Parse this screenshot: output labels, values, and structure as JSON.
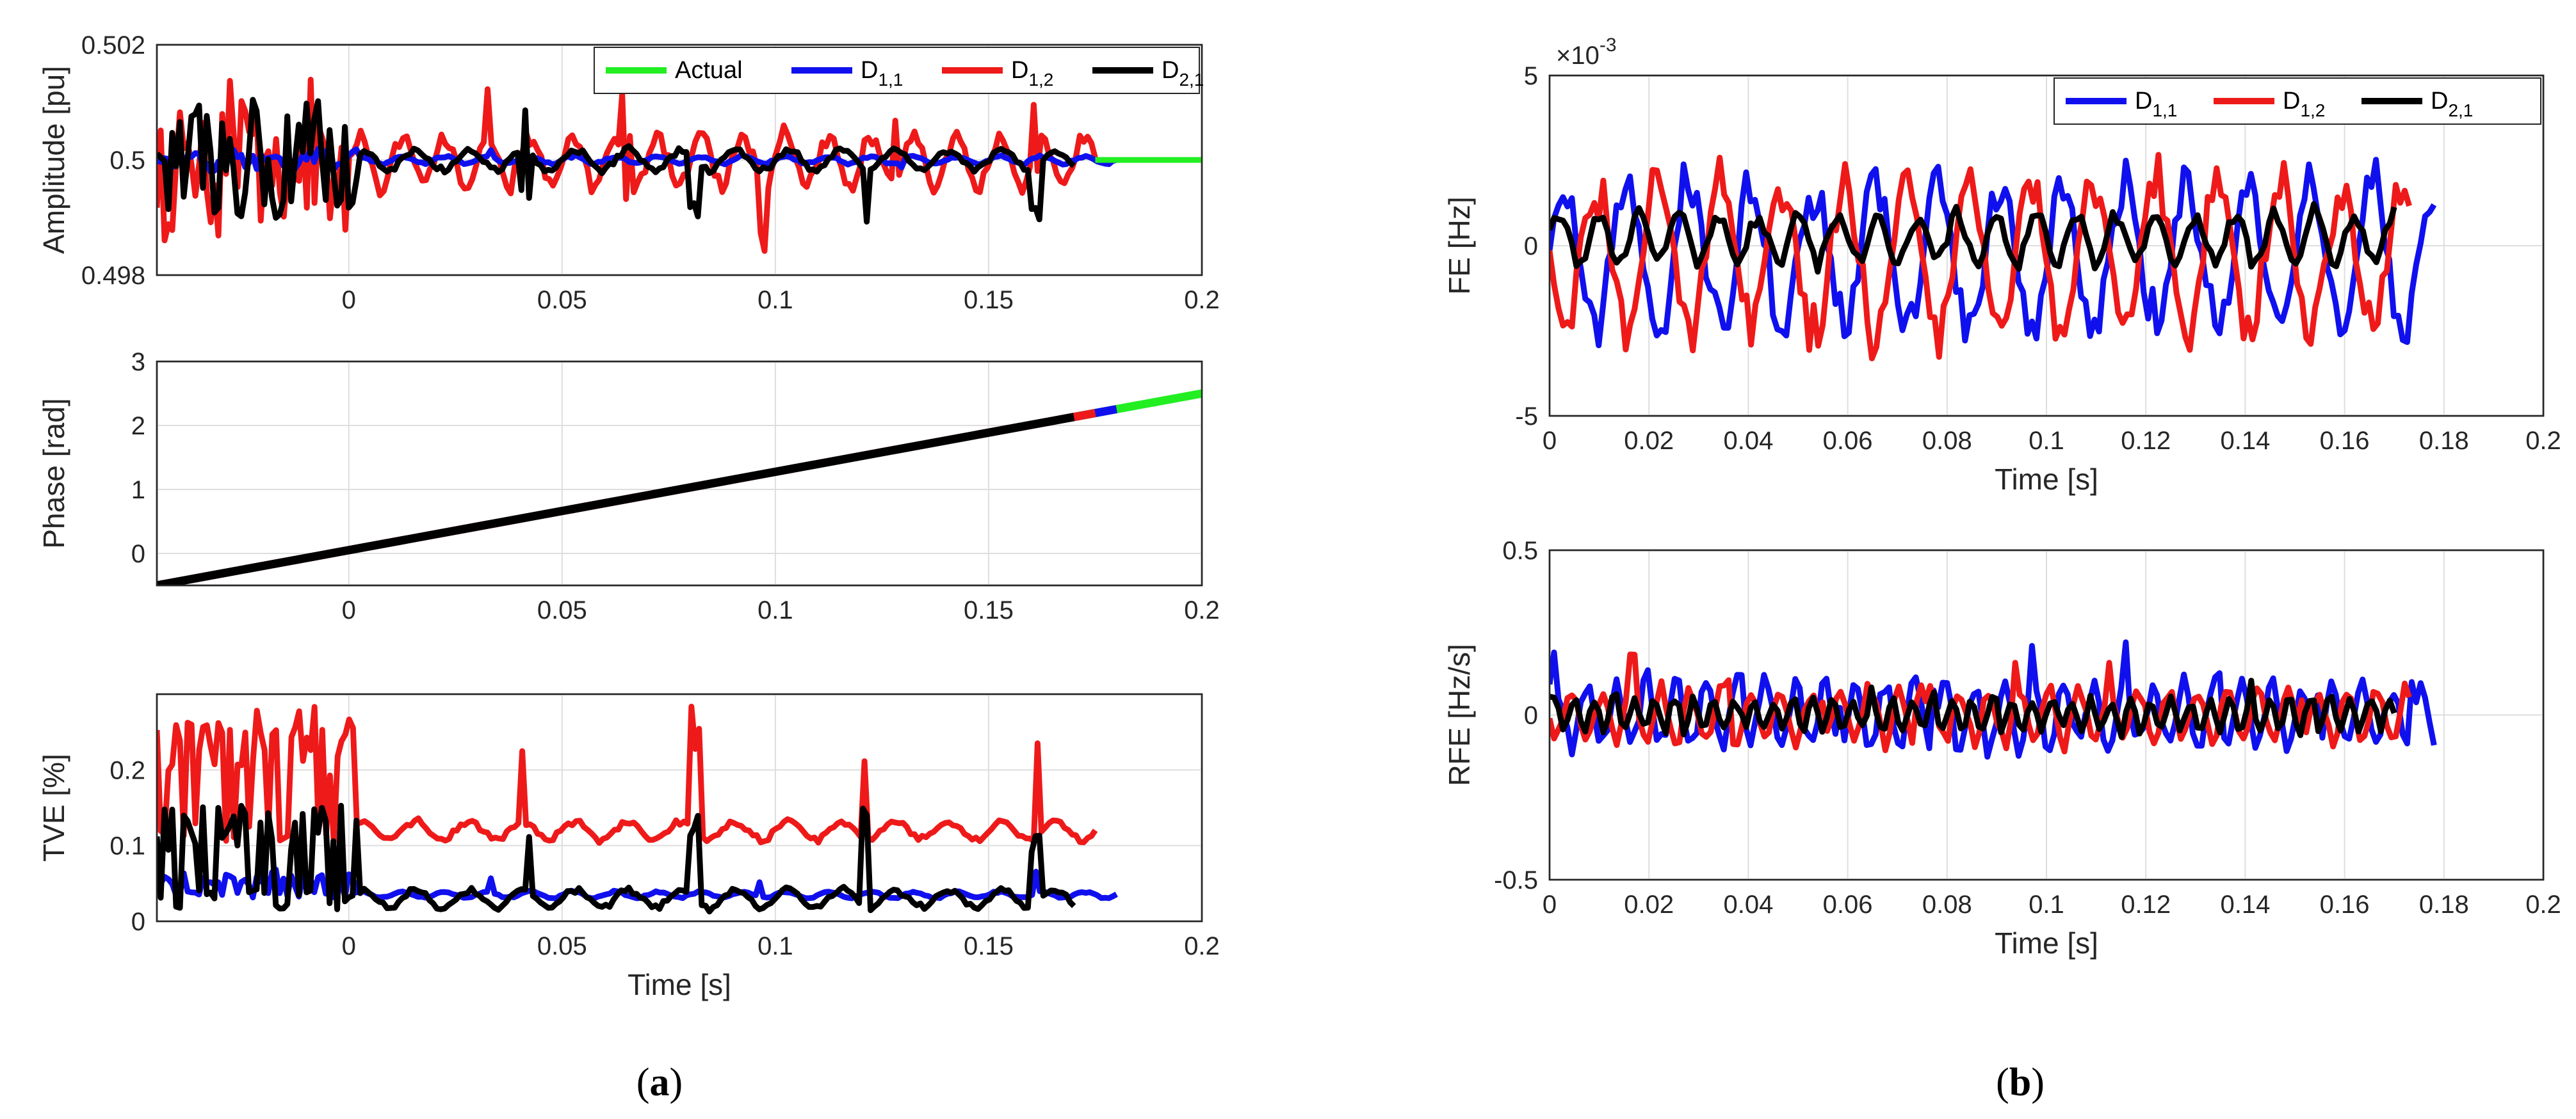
{
  "figure": {
    "caption_a": {
      "open": "(",
      "letter": "a",
      "close": ")"
    },
    "caption_b": {
      "open": "(",
      "letter": "b",
      "close": ")"
    }
  },
  "colors": {
    "actual": "#22ee22",
    "d11": "#1010ee",
    "d12": "#ee1a1a",
    "d21": "#000000"
  },
  "chart_data": [
    {
      "id": "amplitude",
      "type": "line",
      "ylabel": "Amplitude [pu]",
      "xlabel": "",
      "xlim": [
        -0.045,
        0.2
      ],
      "ylim": [
        0.498,
        0.502
      ],
      "xticks": [
        0,
        0.05,
        0.1,
        0.15,
        0.2
      ],
      "xtick_labels": [
        "0",
        "0.05",
        "0.1",
        "0.15",
        "0.2"
      ],
      "yticks": [
        0.498,
        0.5,
        0.502
      ],
      "ytick_labels": [
        "0.498",
        "0.5",
        "0.502"
      ],
      "legend": {
        "position": "top-right",
        "entries": [
          {
            "key": "actual",
            "label": "Actual"
          },
          {
            "key": "d11",
            "label": "D",
            "sub": "1,1"
          },
          {
            "key": "d12",
            "label": "D",
            "sub": "1,2"
          },
          {
            "key": "d21",
            "label": "D",
            "sub": "2,1"
          }
        ]
      },
      "series": [
        {
          "key": "d12",
          "name": "D1,2",
          "x_range": [
            -0.045,
            0.175
          ],
          "center": 0.5,
          "amp": 0.00055,
          "spikes": 0.0011,
          "period": 0.01,
          "seed": 3
        },
        {
          "key": "d11",
          "name": "D1,1",
          "x_range": [
            -0.045,
            0.18
          ],
          "center": 0.5,
          "amp": 8e-05,
          "spikes": 0.00015,
          "period": 0.01,
          "seed": 7
        },
        {
          "key": "d21",
          "name": "D2,1",
          "x_range": [
            -0.045,
            0.17
          ],
          "center": 0.5,
          "amp": 0.00022,
          "spikes": 0.001,
          "period": 0.0125,
          "seed": 11
        },
        {
          "key": "actual",
          "name": "Actual",
          "x_range": [
            0.175,
            0.2
          ],
          "center": 0.5,
          "amp": 0,
          "spikes": 0,
          "period": 0.01,
          "seed": 1
        }
      ]
    },
    {
      "id": "phase",
      "type": "line",
      "ylabel": "Phase [rad]",
      "xlabel": "",
      "xlim": [
        -0.045,
        0.2
      ],
      "ylim": [
        -0.5,
        3
      ],
      "xticks": [
        0,
        0.05,
        0.1,
        0.15,
        0.2
      ],
      "xtick_labels": [
        "0",
        "0.05",
        "0.1",
        "0.15",
        "0.2"
      ],
      "yticks": [
        0,
        1,
        2,
        3
      ],
      "ytick_labels": [
        "0",
        "1",
        "2",
        "3"
      ],
      "series": [
        {
          "key": "actual",
          "name": "Actual",
          "x": [
            -0.045,
            0.2
          ],
          "y": [
            -0.5,
            2.5
          ]
        },
        {
          "key": "d11",
          "name": "D1,1",
          "x": [
            -0.045,
            0.18
          ],
          "y": [
            -0.5,
            2.255
          ]
        },
        {
          "key": "d12",
          "name": "D1,2",
          "x": [
            -0.045,
            0.175
          ],
          "y": [
            -0.5,
            2.194
          ]
        },
        {
          "key": "d21",
          "name": "D2,1",
          "x": [
            -0.045,
            0.17
          ],
          "y": [
            -0.5,
            2.133
          ]
        }
      ]
    },
    {
      "id": "tve",
      "type": "line",
      "ylabel": "TVE [%]",
      "xlabel": "Time [s]",
      "xlim": [
        -0.045,
        0.2
      ],
      "ylim": [
        0,
        0.3
      ],
      "xticks": [
        0,
        0.05,
        0.1,
        0.15,
        0.2
      ],
      "xtick_labels": [
        "0",
        "0.05",
        "0.1",
        "0.15",
        "0.2"
      ],
      "yticks": [
        0,
        0.1,
        0.2
      ],
      "ytick_labels": [
        "0",
        "0.1",
        "0.2"
      ],
      "series": [
        {
          "key": "d12",
          "name": "D1,2",
          "x_range": [
            -0.045,
            0.175
          ],
          "center": 0.12,
          "amp": 0.015,
          "spikes": 0.16,
          "period": 0.0125,
          "seed": 5
        },
        {
          "key": "d11",
          "name": "D1,1",
          "x_range": [
            -0.045,
            0.18
          ],
          "center": 0.035,
          "amp": 0.005,
          "spikes": 0.03,
          "period": 0.01,
          "seed": 9
        },
        {
          "key": "d21",
          "name": "D2,1",
          "x_range": [
            -0.045,
            0.17
          ],
          "center": 0.03,
          "amp": 0.015,
          "spikes": 0.13,
          "period": 0.0125,
          "seed": 13
        }
      ]
    },
    {
      "id": "fe",
      "type": "line",
      "ylabel": "FE [Hz]",
      "xlabel": "Time [s]",
      "exponent": {
        "base": "×10",
        "power": "-3"
      },
      "xlim": [
        0,
        0.2
      ],
      "ylim": [
        -5,
        5
      ],
      "xticks": [
        0,
        0.02,
        0.04,
        0.06,
        0.08,
        0.1,
        0.12,
        0.14,
        0.16,
        0.18,
        0.2
      ],
      "xtick_labels": [
        "0",
        "0.02",
        "0.04",
        "0.06",
        "0.08",
        "0.1",
        "0.12",
        "0.14",
        "0.16",
        "0.18",
        "0.2"
      ],
      "yticks": [
        -5,
        0,
        5
      ],
      "ytick_labels": [
        "-5",
        "0",
        "5"
      ],
      "legend": {
        "position": "top-right",
        "entries": [
          {
            "key": "d11",
            "label": "D",
            "sub": "1,1"
          },
          {
            "key": "d12",
            "label": "D",
            "sub": "1,2"
          },
          {
            "key": "d21",
            "label": "D",
            "sub": "2,1"
          }
        ]
      },
      "series": [
        {
          "key": "d11",
          "name": "D1,1",
          "x_range": [
            0,
            0.178
          ],
          "center": -0.3,
          "amp": 2.8,
          "spikes": 0.6,
          "period": 0.0125,
          "seed": 17
        },
        {
          "key": "d12",
          "name": "D1,2",
          "x_range": [
            0,
            0.173
          ],
          "center": -0.3,
          "amp": 2.8,
          "spikes": 0.6,
          "period": 0.0125,
          "seed": 19,
          "phase": 0.5
        },
        {
          "key": "d21",
          "name": "D2,1",
          "x_range": [
            0,
            0.17
          ],
          "center": 0.2,
          "amp": 0.9,
          "spikes": 0.2,
          "period": 0.008,
          "seed": 23
        }
      ]
    },
    {
      "id": "rfe",
      "type": "line",
      "ylabel": "RFE [Hz/s]",
      "xlabel": "Time [s]",
      "xlim": [
        0,
        0.2
      ],
      "ylim": [
        -0.5,
        0.5
      ],
      "xticks": [
        0,
        0.02,
        0.04,
        0.06,
        0.08,
        0.1,
        0.12,
        0.14,
        0.16,
        0.18,
        0.2
      ],
      "xtick_labels": [
        "0",
        "0.02",
        "0.04",
        "0.06",
        "0.08",
        "0.1",
        "0.12",
        "0.14",
        "0.16",
        "0.18",
        "0.2"
      ],
      "yticks": [
        -0.5,
        0,
        0.5
      ],
      "ytick_labels": [
        "-0.5",
        "0",
        "0.5"
      ],
      "series": [
        {
          "key": "d11",
          "name": "D1,1",
          "x_range": [
            0,
            0.178
          ],
          "center": 0,
          "amp": 0.12,
          "spikes": 0.14,
          "period": 0.006,
          "seed": 29
        },
        {
          "key": "d12",
          "name": "D1,2",
          "x_range": [
            0,
            0.173
          ],
          "center": 0,
          "amp": 0.1,
          "spikes": 0.14,
          "period": 0.006,
          "seed": 31,
          "phase": 0.5
        },
        {
          "key": "d21",
          "name": "D2,1",
          "x_range": [
            0,
            0.17
          ],
          "center": 0,
          "amp": 0.06,
          "spikes": 0.05,
          "period": 0.004,
          "seed": 37
        }
      ]
    }
  ]
}
